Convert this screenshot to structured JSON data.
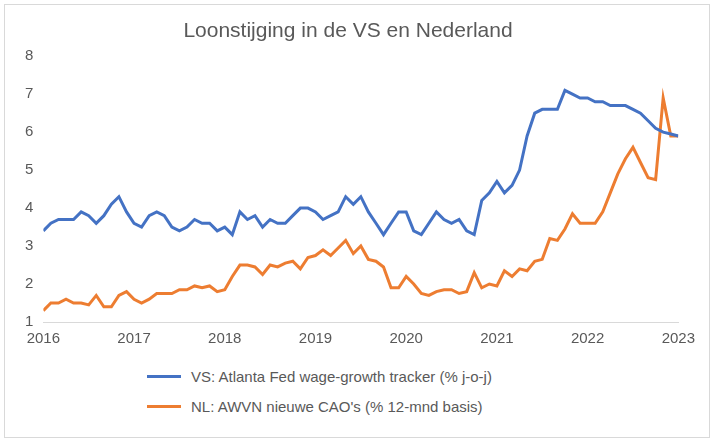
{
  "chart_data": {
    "type": "line",
    "title": "Loonstijging in de VS en Nederland",
    "x": [
      2016.0,
      2016.083,
      2016.167,
      2016.25,
      2016.333,
      2016.417,
      2016.5,
      2016.583,
      2016.667,
      2016.75,
      2016.833,
      2016.917,
      2017.0,
      2017.083,
      2017.167,
      2017.25,
      2017.333,
      2017.417,
      2017.5,
      2017.583,
      2017.667,
      2017.75,
      2017.833,
      2017.917,
      2018.0,
      2018.083,
      2018.167,
      2018.25,
      2018.333,
      2018.417,
      2018.5,
      2018.583,
      2018.667,
      2018.75,
      2018.833,
      2018.917,
      2019.0,
      2019.083,
      2019.167,
      2019.25,
      2019.333,
      2019.417,
      2019.5,
      2019.583,
      2019.667,
      2019.75,
      2019.833,
      2019.917,
      2020.0,
      2020.083,
      2020.167,
      2020.25,
      2020.333,
      2020.417,
      2020.5,
      2020.583,
      2020.667,
      2020.75,
      2020.833,
      2020.917,
      2021.0,
      2021.083,
      2021.167,
      2021.25,
      2021.333,
      2021.417,
      2021.5,
      2021.583,
      2021.667,
      2021.75,
      2021.833,
      2021.917,
      2022.0,
      2022.083,
      2022.167,
      2022.25,
      2022.333,
      2022.417,
      2022.5,
      2022.583,
      2022.667,
      2022.75,
      2022.833,
      2022.917,
      2023.0
    ],
    "series": [
      {
        "name": "VS: Atlanta Fed wage-growth tracker (% j-o-j)",
        "color": "#4472c4",
        "values": [
          3.4,
          3.6,
          3.7,
          3.7,
          3.7,
          3.9,
          3.8,
          3.6,
          3.8,
          4.1,
          4.3,
          3.9,
          3.6,
          3.5,
          3.8,
          3.9,
          3.8,
          3.5,
          3.4,
          3.5,
          3.7,
          3.6,
          3.6,
          3.4,
          3.5,
          3.3,
          3.9,
          3.7,
          3.8,
          3.5,
          3.7,
          3.6,
          3.6,
          3.8,
          4.0,
          4.0,
          3.9,
          3.7,
          3.8,
          3.9,
          4.3,
          4.1,
          4.3,
          3.9,
          3.6,
          3.3,
          3.6,
          3.9,
          3.9,
          3.4,
          3.3,
          3.6,
          3.9,
          3.7,
          3.6,
          3.7,
          3.4,
          3.3,
          4.2,
          4.4,
          4.7,
          4.4,
          4.6,
          5.0,
          5.9,
          6.5,
          6.6,
          6.6,
          6.6,
          7.1,
          7.0,
          6.9,
          6.9,
          6.8,
          6.8,
          6.7,
          6.7,
          6.7,
          6.6,
          6.5,
          6.3,
          6.1,
          6.0,
          5.95,
          5.9
        ]
      },
      {
        "name": "NL: AWVN nieuwe CAO's (% 12-mnd basis)",
        "color": "#ed7d31",
        "values": [
          1.3,
          1.5,
          1.5,
          1.6,
          1.5,
          1.5,
          1.45,
          1.7,
          1.4,
          1.4,
          1.7,
          1.8,
          1.6,
          1.5,
          1.6,
          1.75,
          1.75,
          1.75,
          1.85,
          1.85,
          1.95,
          1.9,
          1.95,
          1.8,
          1.85,
          2.2,
          2.5,
          2.5,
          2.45,
          2.25,
          2.5,
          2.45,
          2.55,
          2.6,
          2.4,
          2.7,
          2.75,
          2.9,
          2.75,
          2.95,
          3.15,
          2.8,
          3.0,
          2.65,
          2.6,
          2.45,
          1.9,
          1.9,
          2.2,
          2.0,
          1.75,
          1.7,
          1.8,
          1.85,
          1.85,
          1.75,
          1.8,
          2.3,
          1.9,
          2.0,
          1.95,
          2.35,
          2.2,
          2.4,
          2.35,
          2.6,
          2.65,
          3.2,
          3.15,
          3.45,
          3.85,
          3.6,
          3.6,
          3.6,
          3.9,
          4.4,
          4.9,
          5.3,
          5.6,
          5.2,
          4.8,
          4.75,
          6.9,
          5.9,
          5.9
        ]
      }
    ],
    "xlim": [
      2016,
      2023
    ],
    "xticks": [
      2016,
      2017,
      2018,
      2019,
      2020,
      2021,
      2022,
      2023
    ],
    "ylim": [
      1,
      8
    ],
    "yticks": [
      1,
      2,
      3,
      4,
      5,
      6,
      7,
      8
    ],
    "grid": false,
    "legend": "bottom"
  }
}
